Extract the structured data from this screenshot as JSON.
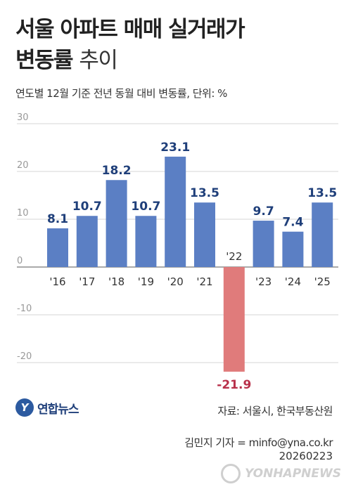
{
  "header": {
    "title_line1": "서울 아파트 매매 실거래가",
    "title_line2_bold": "변동률",
    "title_line2_light": "추이",
    "subtitle": "연도별 12월 기준 전년 동월 대비 변동률, 단위: %"
  },
  "chart_data": {
    "type": "bar",
    "categories": [
      "'16",
      "'17",
      "'18",
      "'19",
      "'20",
      "'21",
      "'22",
      "'23",
      "'24",
      "'25"
    ],
    "values": [
      8.1,
      10.7,
      18.2,
      10.7,
      23.1,
      13.5,
      -21.9,
      9.7,
      7.4,
      13.5
    ],
    "value_labels": [
      "8.1",
      "10.7",
      "18.2",
      "10.7",
      "23.1",
      "13.5",
      "-21.9",
      "9.7",
      "7.4",
      "13.5"
    ],
    "yticks": [
      30,
      20,
      10,
      0,
      -10,
      -20
    ],
    "ylim": [
      -25,
      30
    ],
    "positive_color": "#5b7fc4",
    "negative_color": "#e07b7b",
    "positive_label_color": "#1f3f7a",
    "negative_label_color": "#b8304a",
    "grid": true
  },
  "footer": {
    "logo_mark": "Y",
    "logo_text": "연합뉴스",
    "source": "자료: 서울시, 한국부동산원",
    "reporter": "김민지 기자 = minfo@yna.co.kr",
    "date": "20260223",
    "watermark": "YONHAPNEWS"
  }
}
